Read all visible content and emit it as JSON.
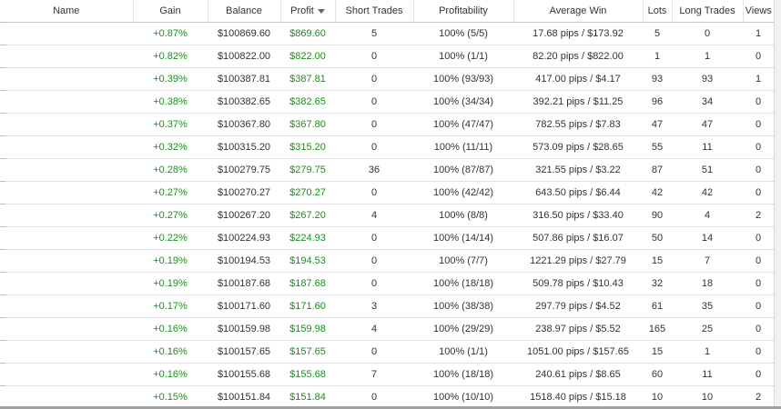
{
  "columns": {
    "name": "Name",
    "gain": "Gain",
    "balance": "Balance",
    "profit": "Profit",
    "short_trades": "Short Trades",
    "profitability": "Profitability",
    "average_win": "Average Win",
    "lots": "Lots",
    "long_trades": "Long Trades",
    "views": "Views"
  },
  "sort": {
    "column": "profit",
    "direction": "descending",
    "icon": "sort-desc-icon"
  },
  "colors": {
    "positive": "#1a8f1a",
    "text": "#333333",
    "border": "#e0e0e0"
  },
  "rows": [
    {
      "name": "",
      "gain": "+0.87%",
      "balance": "$100869.60",
      "profit": "$869.60",
      "short_trades": "5",
      "profitability": "100% (5/5)",
      "average_win": "17.68 pips / $173.92",
      "lots": "5",
      "long_trades": "0",
      "views": "1"
    },
    {
      "name": "",
      "gain": "+0.82%",
      "balance": "$100822.00",
      "profit": "$822.00",
      "short_trades": "0",
      "profitability": "100% (1/1)",
      "average_win": "82.20 pips / $822.00",
      "lots": "1",
      "long_trades": "1",
      "views": "0"
    },
    {
      "name": "",
      "gain": "+0.39%",
      "balance": "$100387.81",
      "profit": "$387.81",
      "short_trades": "0",
      "profitability": "100% (93/93)",
      "average_win": "417.00 pips / $4.17",
      "lots": "93",
      "long_trades": "93",
      "views": "1"
    },
    {
      "name": "",
      "gain": "+0.38%",
      "balance": "$100382.65",
      "profit": "$382.65",
      "short_trades": "0",
      "profitability": "100% (34/34)",
      "average_win": "392.21 pips / $11.25",
      "lots": "96",
      "long_trades": "34",
      "views": "0"
    },
    {
      "name": "",
      "gain": "+0.37%",
      "balance": "$100367.80",
      "profit": "$367.80",
      "short_trades": "0",
      "profitability": "100% (47/47)",
      "average_win": "782.55 pips / $7.83",
      "lots": "47",
      "long_trades": "47",
      "views": "0"
    },
    {
      "name": "",
      "gain": "+0.32%",
      "balance": "$100315.20",
      "profit": "$315.20",
      "short_trades": "0",
      "profitability": "100% (11/11)",
      "average_win": "573.09 pips / $28.65",
      "lots": "55",
      "long_trades": "11",
      "views": "0"
    },
    {
      "name": "",
      "gain": "+0.28%",
      "balance": "$100279.75",
      "profit": "$279.75",
      "short_trades": "36",
      "profitability": "100% (87/87)",
      "average_win": "321.55 pips / $3.22",
      "lots": "87",
      "long_trades": "51",
      "views": "0"
    },
    {
      "name": "",
      "gain": "+0.27%",
      "balance": "$100270.27",
      "profit": "$270.27",
      "short_trades": "0",
      "profitability": "100% (42/42)",
      "average_win": "643.50 pips / $6.44",
      "lots": "42",
      "long_trades": "42",
      "views": "0"
    },
    {
      "name": "",
      "gain": "+0.27%",
      "balance": "$100267.20",
      "profit": "$267.20",
      "short_trades": "4",
      "profitability": "100% (8/8)",
      "average_win": "316.50 pips / $33.40",
      "lots": "90",
      "long_trades": "4",
      "views": "2"
    },
    {
      "name": "",
      "gain": "+0.22%",
      "balance": "$100224.93",
      "profit": "$224.93",
      "short_trades": "0",
      "profitability": "100% (14/14)",
      "average_win": "507.86 pips / $16.07",
      "lots": "50",
      "long_trades": "14",
      "views": "0"
    },
    {
      "name": "",
      "gain": "+0.19%",
      "balance": "$100194.53",
      "profit": "$194.53",
      "short_trades": "0",
      "profitability": "100% (7/7)",
      "average_win": "1221.29 pips / $27.79",
      "lots": "15",
      "long_trades": "7",
      "views": "0"
    },
    {
      "name": "",
      "gain": "+0.19%",
      "balance": "$100187.68",
      "profit": "$187.68",
      "short_trades": "0",
      "profitability": "100% (18/18)",
      "average_win": "509.78 pips / $10.43",
      "lots": "32",
      "long_trades": "18",
      "views": "0"
    },
    {
      "name": "",
      "gain": "+0.17%",
      "balance": "$100171.60",
      "profit": "$171.60",
      "short_trades": "3",
      "profitability": "100% (38/38)",
      "average_win": "297.79 pips / $4.52",
      "lots": "61",
      "long_trades": "35",
      "views": "0"
    },
    {
      "name": "",
      "gain": "+0.16%",
      "balance": "$100159.98",
      "profit": "$159.98",
      "short_trades": "4",
      "profitability": "100% (29/29)",
      "average_win": "238.97 pips / $5.52",
      "lots": "165",
      "long_trades": "25",
      "views": "0"
    },
    {
      "name": "",
      "gain": "+0.16%",
      "balance": "$100157.65",
      "profit": "$157.65",
      "short_trades": "0",
      "profitability": "100% (1/1)",
      "average_win": "1051.00 pips / $157.65",
      "lots": "15",
      "long_trades": "1",
      "views": "0"
    },
    {
      "name": "",
      "gain": "+0.16%",
      "balance": "$100155.68",
      "profit": "$155.68",
      "short_trades": "7",
      "profitability": "100% (18/18)",
      "average_win": "240.61 pips / $8.65",
      "lots": "60",
      "long_trades": "11",
      "views": "0"
    },
    {
      "name": "",
      "gain": "+0.15%",
      "balance": "$100151.84",
      "profit": "$151.84",
      "short_trades": "0",
      "profitability": "100% (10/10)",
      "average_win": "1518.40 pips / $15.18",
      "lots": "10",
      "long_trades": "10",
      "views": "2"
    }
  ]
}
